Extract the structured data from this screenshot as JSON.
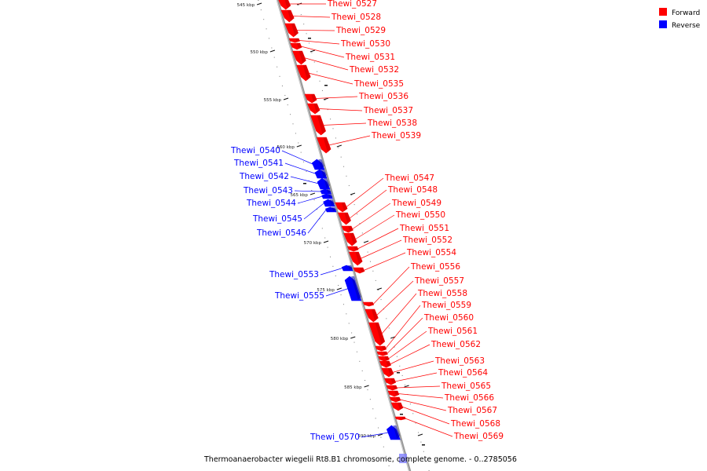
{
  "caption": "Thermoanaerobacter wiegelii Rt8.B1 chromosome, complete genome. - 0..2785056",
  "legend": [
    {
      "label": "Forward",
      "color": "#ff0000"
    },
    {
      "label": "Reverse",
      "color": "#0000ff"
    }
  ],
  "colors": {
    "forward": "#ff0000",
    "reverse": "#0000ff",
    "backbone": "#888888"
  },
  "ticks": [
    "545 kbp",
    "550 kbp",
    "555 kbp",
    "560 kbp",
    "565 kbp",
    "570 kbp",
    "575 kbp",
    "580 kbp",
    "585 kbp",
    "590 kbp"
  ],
  "genes": [
    {
      "id": "Thewi_0527",
      "strand": "forward"
    },
    {
      "id": "Thewi_0528",
      "strand": "forward"
    },
    {
      "id": "Thewi_0529",
      "strand": "forward"
    },
    {
      "id": "Thewi_0530",
      "strand": "forward"
    },
    {
      "id": "Thewi_0531",
      "strand": "forward"
    },
    {
      "id": "Thewi_0532",
      "strand": "forward"
    },
    {
      "id": "Thewi_0535",
      "strand": "forward"
    },
    {
      "id": "Thewi_0536",
      "strand": "forward"
    },
    {
      "id": "Thewi_0537",
      "strand": "forward"
    },
    {
      "id": "Thewi_0538",
      "strand": "forward"
    },
    {
      "id": "Thewi_0539",
      "strand": "forward"
    },
    {
      "id": "Thewi_0540",
      "strand": "reverse"
    },
    {
      "id": "Thewi_0541",
      "strand": "reverse"
    },
    {
      "id": "Thewi_0542",
      "strand": "reverse"
    },
    {
      "id": "Thewi_0543",
      "strand": "reverse"
    },
    {
      "id": "Thewi_0544",
      "strand": "reverse"
    },
    {
      "id": "Thewi_0545",
      "strand": "reverse"
    },
    {
      "id": "Thewi_0546",
      "strand": "reverse"
    },
    {
      "id": "Thewi_0547",
      "strand": "forward"
    },
    {
      "id": "Thewi_0548",
      "strand": "forward"
    },
    {
      "id": "Thewi_0549",
      "strand": "forward"
    },
    {
      "id": "Thewi_0550",
      "strand": "forward"
    },
    {
      "id": "Thewi_0551",
      "strand": "forward"
    },
    {
      "id": "Thewi_0552",
      "strand": "forward"
    },
    {
      "id": "Thewi_0554",
      "strand": "forward"
    },
    {
      "id": "Thewi_0553",
      "strand": "reverse"
    },
    {
      "id": "Thewi_0555",
      "strand": "reverse"
    },
    {
      "id": "Thewi_0556",
      "strand": "forward"
    },
    {
      "id": "Thewi_0557",
      "strand": "forward"
    },
    {
      "id": "Thewi_0558",
      "strand": "forward"
    },
    {
      "id": "Thewi_0559",
      "strand": "forward"
    },
    {
      "id": "Thewi_0560",
      "strand": "forward"
    },
    {
      "id": "Thewi_0561",
      "strand": "forward"
    },
    {
      "id": "Thewi_0562",
      "strand": "forward"
    },
    {
      "id": "Thewi_0563",
      "strand": "forward"
    },
    {
      "id": "Thewi_0564",
      "strand": "forward"
    },
    {
      "id": "Thewi_0565",
      "strand": "forward"
    },
    {
      "id": "Thewi_0566",
      "strand": "forward"
    },
    {
      "id": "Thewi_0567",
      "strand": "forward"
    },
    {
      "id": "Thewi_0568",
      "strand": "forward"
    },
    {
      "id": "Thewi_0569",
      "strand": "forward"
    },
    {
      "id": "Thewi_0570",
      "strand": "reverse"
    }
  ]
}
